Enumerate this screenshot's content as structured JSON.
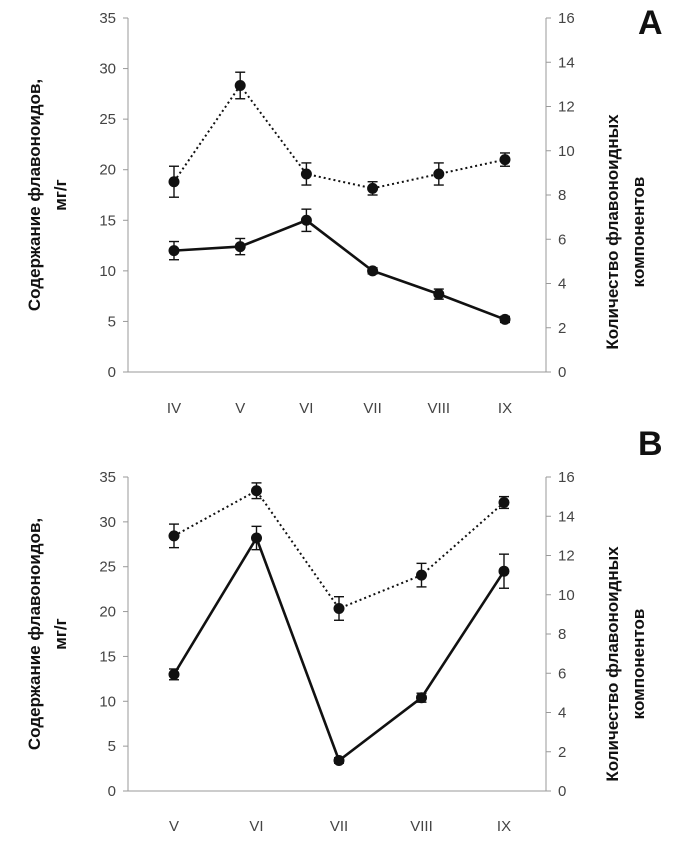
{
  "chart_data": [
    {
      "type": "line",
      "panel_label": "A",
      "categories": [
        "IV",
        "V",
        "VI",
        "VII",
        "VIII",
        "IX"
      ],
      "y_left": {
        "label_lines": [
          "Содержание флавоноидов,",
          "мг/г"
        ],
        "lim": [
          0,
          35
        ],
        "ticks": [
          0,
          5,
          10,
          15,
          20,
          25,
          30,
          35
        ]
      },
      "y_right": {
        "label_lines": [
          "Количество флавоноидных",
          "компонентов"
        ],
        "lim": [
          0,
          16
        ],
        "ticks": [
          0,
          2,
          4,
          6,
          8,
          10,
          12,
          14,
          16
        ]
      },
      "series": [
        {
          "name": "content",
          "axis": "left",
          "style": "solid",
          "values": [
            12.0,
            12.4,
            15.0,
            10.0,
            7.7,
            5.2
          ],
          "errors": [
            0.9,
            0.8,
            1.1,
            0.3,
            0.5,
            0.3
          ]
        },
        {
          "name": "components",
          "axis": "right",
          "style": "dotted",
          "values": [
            8.6,
            12.95,
            8.95,
            8.3,
            8.95,
            9.6
          ],
          "errors": [
            0.7,
            0.6,
            0.5,
            0.3,
            0.5,
            0.3
          ]
        }
      ]
    },
    {
      "type": "line",
      "panel_label": "B",
      "categories": [
        "V",
        "VI",
        "VII",
        "VIII",
        "IX"
      ],
      "y_left": {
        "label_lines": [
          "Содержание флавоноидов,",
          "мг/г"
        ],
        "lim": [
          0,
          35
        ],
        "ticks": [
          0,
          5,
          10,
          15,
          20,
          25,
          30,
          35
        ]
      },
      "y_right": {
        "label_lines": [
          "Количество флавоноидных",
          "компонентов"
        ],
        "lim": [
          0,
          16
        ],
        "ticks": [
          0,
          2,
          4,
          6,
          8,
          10,
          12,
          14,
          16
        ]
      },
      "series": [
        {
          "name": "content",
          "axis": "left",
          "style": "solid",
          "values": [
            13.0,
            28.2,
            3.4,
            10.4,
            24.5
          ],
          "errors": [
            0.6,
            1.3,
            0.3,
            0.5,
            1.9
          ]
        },
        {
          "name": "components",
          "axis": "right",
          "style": "dotted",
          "values": [
            13.0,
            15.3,
            9.3,
            11.0,
            14.7
          ],
          "errors": [
            0.6,
            0.4,
            0.6,
            0.6,
            0.3
          ]
        }
      ]
    }
  ]
}
